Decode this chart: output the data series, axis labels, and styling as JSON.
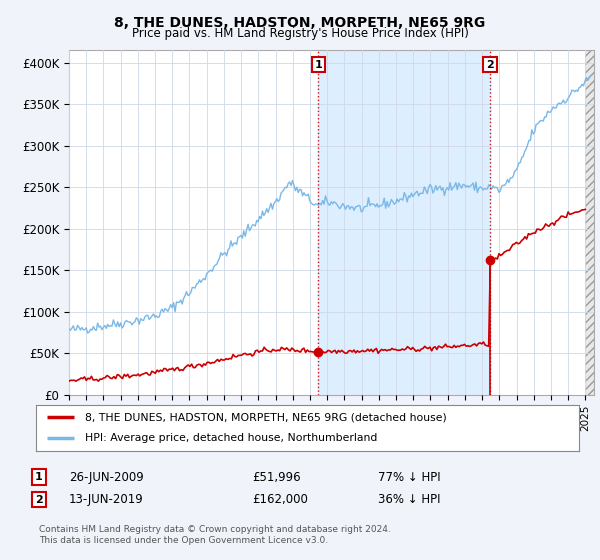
{
  "title": "8, THE DUNES, HADSTON, MORPETH, NE65 9RG",
  "subtitle": "Price paid vs. HM Land Registry's House Price Index (HPI)",
  "ylabel_ticks": [
    "£0",
    "£50K",
    "£100K",
    "£150K",
    "£200K",
    "£250K",
    "£300K",
    "£350K",
    "£400K"
  ],
  "ylabel_values": [
    0,
    50000,
    100000,
    150000,
    200000,
    250000,
    300000,
    350000,
    400000
  ],
  "ylim": [
    0,
    415000
  ],
  "xlim_start": 1995.0,
  "xlim_end": 2025.5,
  "hpi_color": "#7ab8e8",
  "price_color": "#cc0000",
  "sale1_x": 2009.48,
  "sale1_price": 51996,
  "sale2_x": 2019.45,
  "sale2_price": 162000,
  "legend_line1": "8, THE DUNES, HADSTON, MORPETH, NE65 9RG (detached house)",
  "legend_line2": "HPI: Average price, detached house, Northumberland",
  "note1_label": "1",
  "note1_text": "26-JUN-2009",
  "note1_price": "£51,996",
  "note1_pct": "77% ↓ HPI",
  "note2_label": "2",
  "note2_text": "13-JUN-2019",
  "note2_price": "£162,000",
  "note2_pct": "36% ↓ HPI",
  "footer": "Contains HM Land Registry data © Crown copyright and database right 2024.\nThis data is licensed under the Open Government Licence v3.0.",
  "bg_color": "#f0f4fa",
  "plot_bg": "#ffffff",
  "shade_between_sales_color": "#ddeeff",
  "hatch_color": "#cccccc"
}
